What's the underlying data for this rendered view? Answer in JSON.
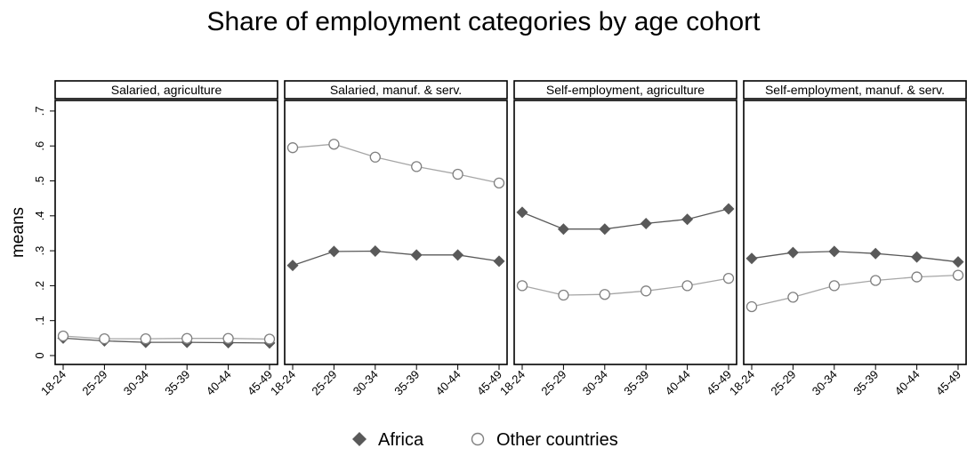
{
  "chart_data": {
    "type": "line",
    "title": "Share of employment categories by age cohort",
    "ylabel": "means",
    "xlabel": "",
    "ylim": [
      0,
      0.7
    ],
    "yticks": [
      {
        "value": 0,
        "label": "0"
      },
      {
        "value": 0.1,
        "label": ".1"
      },
      {
        "value": 0.2,
        "label": ".2"
      },
      {
        "value": 0.3,
        "label": ".3"
      },
      {
        "value": 0.4,
        "label": ".4"
      },
      {
        "value": 0.5,
        "label": ".5"
      },
      {
        "value": 0.6,
        "label": ".6"
      },
      {
        "value": 0.7,
        "label": ".7"
      }
    ],
    "categories": [
      "18-24",
      "25-29",
      "30-34",
      "35-39",
      "40-44",
      "45-49"
    ],
    "legend_position": "bottom",
    "grid": false,
    "panels": [
      {
        "title": "Salaried, agriculture",
        "series": [
          {
            "name": "Africa",
            "values": [
              0.05,
              0.042,
              0.038,
              0.038,
              0.037,
              0.036
            ]
          },
          {
            "name": "Other countries",
            "values": [
              0.056,
              0.048,
              0.048,
              0.049,
              0.049,
              0.047
            ]
          }
        ]
      },
      {
        "title": "Salaried, manuf. & serv.",
        "series": [
          {
            "name": "Africa",
            "values": [
              0.258,
              0.298,
              0.299,
              0.288,
              0.288,
              0.27
            ]
          },
          {
            "name": "Other countries",
            "values": [
              0.595,
              0.605,
              0.568,
              0.541,
              0.519,
              0.494
            ]
          }
        ]
      },
      {
        "title": "Self-employment, agriculture",
        "series": [
          {
            "name": "Africa",
            "values": [
              0.41,
              0.362,
              0.362,
              0.378,
              0.39,
              0.42
            ]
          },
          {
            "name": "Other countries",
            "values": [
              0.2,
              0.173,
              0.175,
              0.185,
              0.2,
              0.221
            ]
          }
        ]
      },
      {
        "title": "Self-employment, manuf. & serv.",
        "series": [
          {
            "name": "Africa",
            "values": [
              0.278,
              0.295,
              0.298,
              0.292,
              0.282,
              0.268
            ]
          },
          {
            "name": "Other countries",
            "values": [
              0.14,
              0.167,
              0.2,
              0.215,
              0.225,
              0.23
            ]
          }
        ]
      }
    ],
    "legend": [
      {
        "name": "Africa",
        "marker": "filled-diamond",
        "color": "#595959"
      },
      {
        "name": "Other countries",
        "marker": "hollow-circle",
        "color": "#808080"
      }
    ]
  }
}
